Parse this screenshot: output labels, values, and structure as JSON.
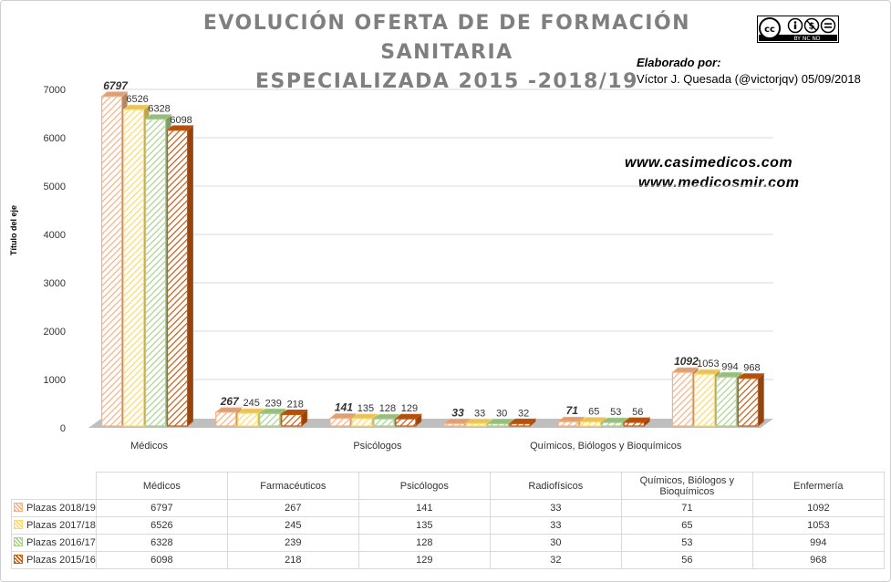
{
  "title_line1": "EVOLUCIÓN OFERTA DE DE FORMACIÓN SANITARIA",
  "title_line2": "ESPECIALIZADA 2015 -2018/19",
  "credit_label": "Elaborado por:",
  "credit_text": "Víctor J. Quesada (@victorjqv) 05/09/2018",
  "website1": "www.casimedicos.com",
  "website2": "www.medicosmir.com",
  "license": "BY NC ND",
  "y_axis_title": "Título del eje",
  "visible_category_labels": [
    "Médicos",
    "Psicólogos",
    "Químicos, Biólogos y Bioquímicos"
  ],
  "colors": {
    "Plazas 2018/19": "#f4b183",
    "Plazas 2017/18": "#ffd966",
    "Plazas 2016/17": "#a9d18e",
    "Plazas 2015/16": "#c55a11",
    "floor": "#bfbfbf",
    "title": "#7f7f7f"
  },
  "chart_data": {
    "type": "bar",
    "title": "EVOLUCIÓN OFERTA DE DE FORMACIÓN SANITARIA ESPECIALIZADA 2015 -2018/19",
    "ylabel": "Título del eje",
    "ylim": [
      0,
      7000
    ],
    "yticks": [
      0,
      1000,
      2000,
      3000,
      4000,
      5000,
      6000,
      7000
    ],
    "grid": true,
    "style": "3d-hatched",
    "categories": [
      "Médicos",
      "Farmacéuticos",
      "Psicólogos",
      "Radiofísicos",
      "Químicos, Biólogos y Bioquímicos",
      "Enfermería"
    ],
    "series": [
      {
        "name": "Plazas 2018/19",
        "values": [
          6797,
          267,
          141,
          33,
          71,
          1092
        ]
      },
      {
        "name": "Plazas 2017/18",
        "values": [
          6526,
          245,
          135,
          33,
          65,
          1053
        ]
      },
      {
        "name": "Plazas 2016/17",
        "values": [
          6328,
          239,
          128,
          30,
          53,
          994
        ]
      },
      {
        "name": "Plazas 2015/16",
        "values": [
          6098,
          218,
          129,
          32,
          56,
          968
        ]
      }
    ]
  }
}
